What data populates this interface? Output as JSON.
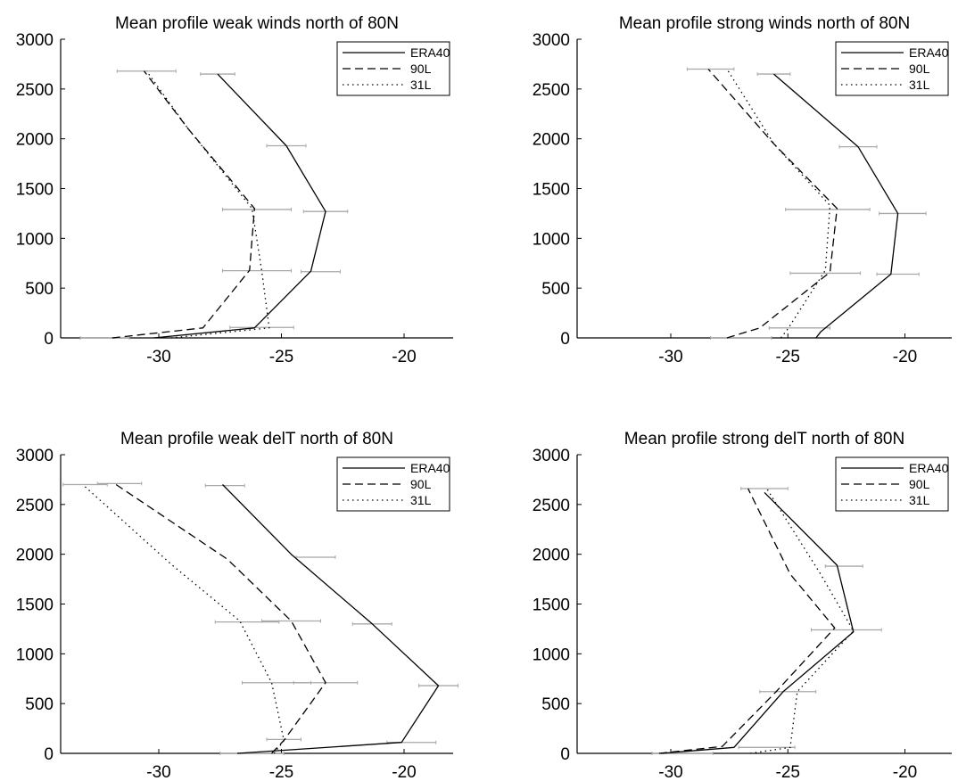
{
  "chart_data": [
    {
      "type": "line",
      "title": "Mean profile weak winds north of 80N",
      "xlabel": "",
      "ylabel": "",
      "xlim": [
        -34,
        -18
      ],
      "ylim": [
        0,
        3000
      ],
      "xticks": [
        -30,
        -25,
        -20
      ],
      "yticks": [
        0,
        500,
        1000,
        1500,
        2000,
        2500,
        3000
      ],
      "legend": "top-right",
      "series": [
        {
          "name": "ERA40",
          "style": "solid",
          "x": [
            -30.2,
            -26.1,
            -23.8,
            -23.2,
            -24.8,
            -27.6
          ],
          "y": [
            0,
            100,
            670,
            1270,
            1930,
            2650
          ]
        },
        {
          "name": "90L",
          "style": "dashed",
          "x": [
            -31.9,
            -28.2,
            -26.3,
            -26.1,
            -28.8,
            -30.6
          ],
          "y": [
            0,
            100,
            680,
            1300,
            2100,
            2680
          ]
        },
        {
          "name": "31L",
          "style": "dotted",
          "x": [
            -29.5,
            -25.5,
            -25.8,
            -26.2,
            -28.8,
            -30.5
          ],
          "y": [
            0,
            100,
            670,
            1300,
            2100,
            2680
          ]
        }
      ],
      "error_bars": [
        {
          "x": -32.2,
          "y": 0,
          "half_width": 1.0
        },
        {
          "x": -25.8,
          "y": 105,
          "half_width": 1.3
        },
        {
          "x": -26.0,
          "y": 675,
          "half_width": 1.4
        },
        {
          "x": -23.4,
          "y": 665,
          "half_width": 0.8
        },
        {
          "x": -26.0,
          "y": 1290,
          "half_width": 1.4
        },
        {
          "x": -23.2,
          "y": 1270,
          "half_width": 0.9
        },
        {
          "x": -24.8,
          "y": 1930,
          "half_width": 0.8
        },
        {
          "x": -27.6,
          "y": 2650,
          "half_width": 0.7
        },
        {
          "x": -30.5,
          "y": 2680,
          "half_width": 1.2
        }
      ]
    },
    {
      "type": "line",
      "title": "Mean profile strong winds north of 80N",
      "xlabel": "",
      "ylabel": "",
      "xlim": [
        -34,
        -18
      ],
      "ylim": [
        0,
        3000
      ],
      "xticks": [
        -30,
        -25,
        -20
      ],
      "yticks": [
        0,
        500,
        1000,
        1500,
        2000,
        2500,
        3000
      ],
      "legend": "top-right",
      "series": [
        {
          "name": "ERA40",
          "style": "solid",
          "x": [
            -23.8,
            -23.6,
            -20.6,
            -20.3,
            -22.0,
            -25.6
          ],
          "y": [
            0,
            60,
            640,
            1250,
            1920,
            2650
          ]
        },
        {
          "name": "90L",
          "style": "dashed",
          "x": [
            -27.6,
            -26.2,
            -23.2,
            -22.9,
            -25.6,
            -28.4
          ],
          "y": [
            0,
            100,
            660,
            1300,
            1950,
            2700
          ]
        },
        {
          "name": "31L",
          "style": "dotted",
          "x": [
            -25.3,
            -25.0,
            -23.4,
            -23.2,
            -25.6,
            -27.6
          ],
          "y": [
            0,
            90,
            680,
            1330,
            1950,
            2700
          ]
        }
      ],
      "error_bars": [
        {
          "x": -27.0,
          "y": 0,
          "half_width": 1.3
        },
        {
          "x": -24.5,
          "y": 100,
          "half_width": 1.3
        },
        {
          "x": -23.4,
          "y": 650,
          "half_width": 1.5
        },
        {
          "x": -20.3,
          "y": 640,
          "half_width": 0.9
        },
        {
          "x": -23.3,
          "y": 1290,
          "half_width": 1.8
        },
        {
          "x": -20.1,
          "y": 1250,
          "half_width": 1.0
        },
        {
          "x": -22.0,
          "y": 1920,
          "half_width": 0.8
        },
        {
          "x": -25.6,
          "y": 2650,
          "half_width": 0.7
        },
        {
          "x": -28.3,
          "y": 2700,
          "half_width": 1.0
        }
      ]
    },
    {
      "type": "line",
      "title": "Mean profile weak delT north of 80N",
      "xlabel": "",
      "ylabel": "",
      "xlim": [
        -34,
        -18
      ],
      "ylim": [
        0,
        3000
      ],
      "xticks": [
        -30,
        -25,
        -20
      ],
      "yticks": [
        0,
        500,
        1000,
        1500,
        2000,
        2500,
        3000
      ],
      "legend": "top-right",
      "series": [
        {
          "name": "ERA40",
          "style": "solid",
          "x": [
            -26.8,
            -20.1,
            -18.6,
            -21.3,
            -24.6,
            -27.4
          ],
          "y": [
            0,
            110,
            680,
            1300,
            2000,
            2700
          ]
        },
        {
          "name": "90L",
          "style": "dashed",
          "x": [
            -25.4,
            -24.9,
            -23.2,
            -24.6,
            -27.2,
            -31.8
          ],
          "y": [
            0,
            130,
            710,
            1330,
            1950,
            2710
          ]
        },
        {
          "name": "31L",
          "style": "dotted",
          "x": [
            -25.3,
            -24.9,
            -25.4,
            -26.7,
            -29.5,
            -33.1
          ],
          "y": [
            0,
            130,
            710,
            1330,
            1900,
            2700
          ]
        }
      ],
      "error_bars": [
        {
          "x": -26.2,
          "y": 0,
          "half_width": 1.3
        },
        {
          "x": -24.9,
          "y": 140,
          "half_width": 0.7
        },
        {
          "x": -19.7,
          "y": 110,
          "half_width": 1.0
        },
        {
          "x": -25.2,
          "y": 710,
          "half_width": 1.4
        },
        {
          "x": -23.2,
          "y": 710,
          "half_width": 1.3
        },
        {
          "x": -18.6,
          "y": 680,
          "half_width": 0.8
        },
        {
          "x": -26.4,
          "y": 1320,
          "half_width": 1.3
        },
        {
          "x": -24.6,
          "y": 1330,
          "half_width": 1.2
        },
        {
          "x": -21.3,
          "y": 1300,
          "half_width": 0.8
        },
        {
          "x": -23.6,
          "y": 1970,
          "half_width": 0.8
        },
        {
          "x": -27.3,
          "y": 2690,
          "half_width": 0.8
        },
        {
          "x": -31.6,
          "y": 2710,
          "half_width": 0.9
        },
        {
          "x": -33.0,
          "y": 2700,
          "half_width": 0.9
        }
      ]
    },
    {
      "type": "line",
      "title": "Mean profile strong delT north of 80N",
      "xlabel": "",
      "ylabel": "",
      "xlim": [
        -34,
        -18
      ],
      "ylim": [
        0,
        3000
      ],
      "xticks": [
        -30,
        -25,
        -20
      ],
      "yticks": [
        0,
        500,
        1000,
        1500,
        2000,
        2500,
        3000
      ],
      "legend": "top-right",
      "series": [
        {
          "name": "ERA40",
          "style": "solid",
          "x": [
            -30.4,
            -27.3,
            -25.2,
            -22.2,
            -22.9,
            -26.0
          ],
          "y": [
            0,
            60,
            620,
            1220,
            1890,
            2620
          ]
        },
        {
          "name": "90L",
          "style": "dashed",
          "x": [
            -30.5,
            -27.8,
            -25.5,
            -23.0,
            -24.9,
            -26.7
          ],
          "y": [
            0,
            70,
            620,
            1260,
            1800,
            2660
          ]
        },
        {
          "name": "31L",
          "style": "dotted",
          "x": [
            -26.6,
            -24.9,
            -24.6,
            -22.2,
            -23.6,
            -25.9
          ],
          "y": [
            0,
            60,
            620,
            1230,
            1800,
            2660
          ]
        }
      ],
      "error_bars": [
        {
          "x": -29.5,
          "y": 0,
          "half_width": 1.3
        },
        {
          "x": -25.9,
          "y": 60,
          "half_width": 1.2
        },
        {
          "x": -25.0,
          "y": 620,
          "half_width": 1.2
        },
        {
          "x": -22.5,
          "y": 1240,
          "half_width": 1.5
        },
        {
          "x": -22.6,
          "y": 1880,
          "half_width": 0.8
        },
        {
          "x": -26.0,
          "y": 2660,
          "half_width": 1.0
        }
      ]
    }
  ]
}
